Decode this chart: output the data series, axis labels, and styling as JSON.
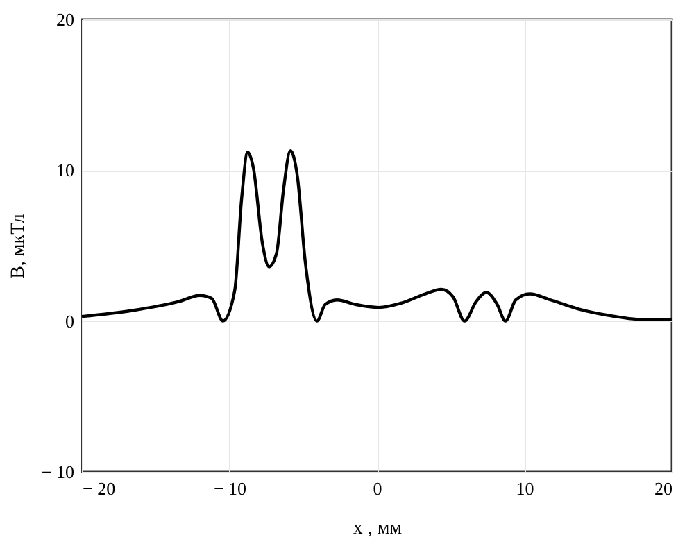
{
  "chart_data": {
    "type": "line",
    "xlabel": "x , мм",
    "ylabel": "B, мкТл",
    "x": [
      -20,
      -16.57,
      -13.4,
      -12.0,
      -11.2,
      -10.43,
      -9.64,
      -9.17,
      -8.76,
      -8.38,
      -7.75,
      -7.31,
      -6.8,
      -6.33,
      -5.86,
      -5.39,
      -4.85,
      -4.06,
      -3.5,
      -2.7,
      -1.45,
      0.13,
      1.7,
      3.28,
      4.38,
      5.17,
      5.95,
      6.74,
      7.43,
      8.16,
      8.72,
      9.42,
      10.36,
      11.78,
      13.67,
      15.56,
      18.08,
      20
    ],
    "series": [
      {
        "color": "#000000",
        "values": [
          0.3,
          0.7,
          1.3,
          1.7,
          1.5,
          0,
          2.0,
          8.1,
          11.2,
          10.2,
          5.1,
          3.6,
          4.5,
          8.7,
          11.3,
          9.6,
          3.9,
          0,
          1.1,
          1.4,
          1.1,
          0.9,
          1.2,
          1.8,
          2.1,
          1.6,
          0,
          1.3,
          1.9,
          1.1,
          0,
          1.4,
          1.8,
          1.4,
          0.8,
          0.4,
          0.1,
          0.1
        ]
      }
    ],
    "xlim": [
      -20,
      20
    ],
    "ylim": [
      -10,
      20
    ],
    "xticks": [
      {
        "value": -20,
        "label": "− 20"
      },
      {
        "value": -10,
        "label": "− 10"
      },
      0,
      10,
      20
    ],
    "yticks": [
      {
        "value": -10,
        "label": "− 10"
      },
      0,
      10,
      20
    ],
    "grid": true,
    "line_style": "solid",
    "marker": "none"
  }
}
